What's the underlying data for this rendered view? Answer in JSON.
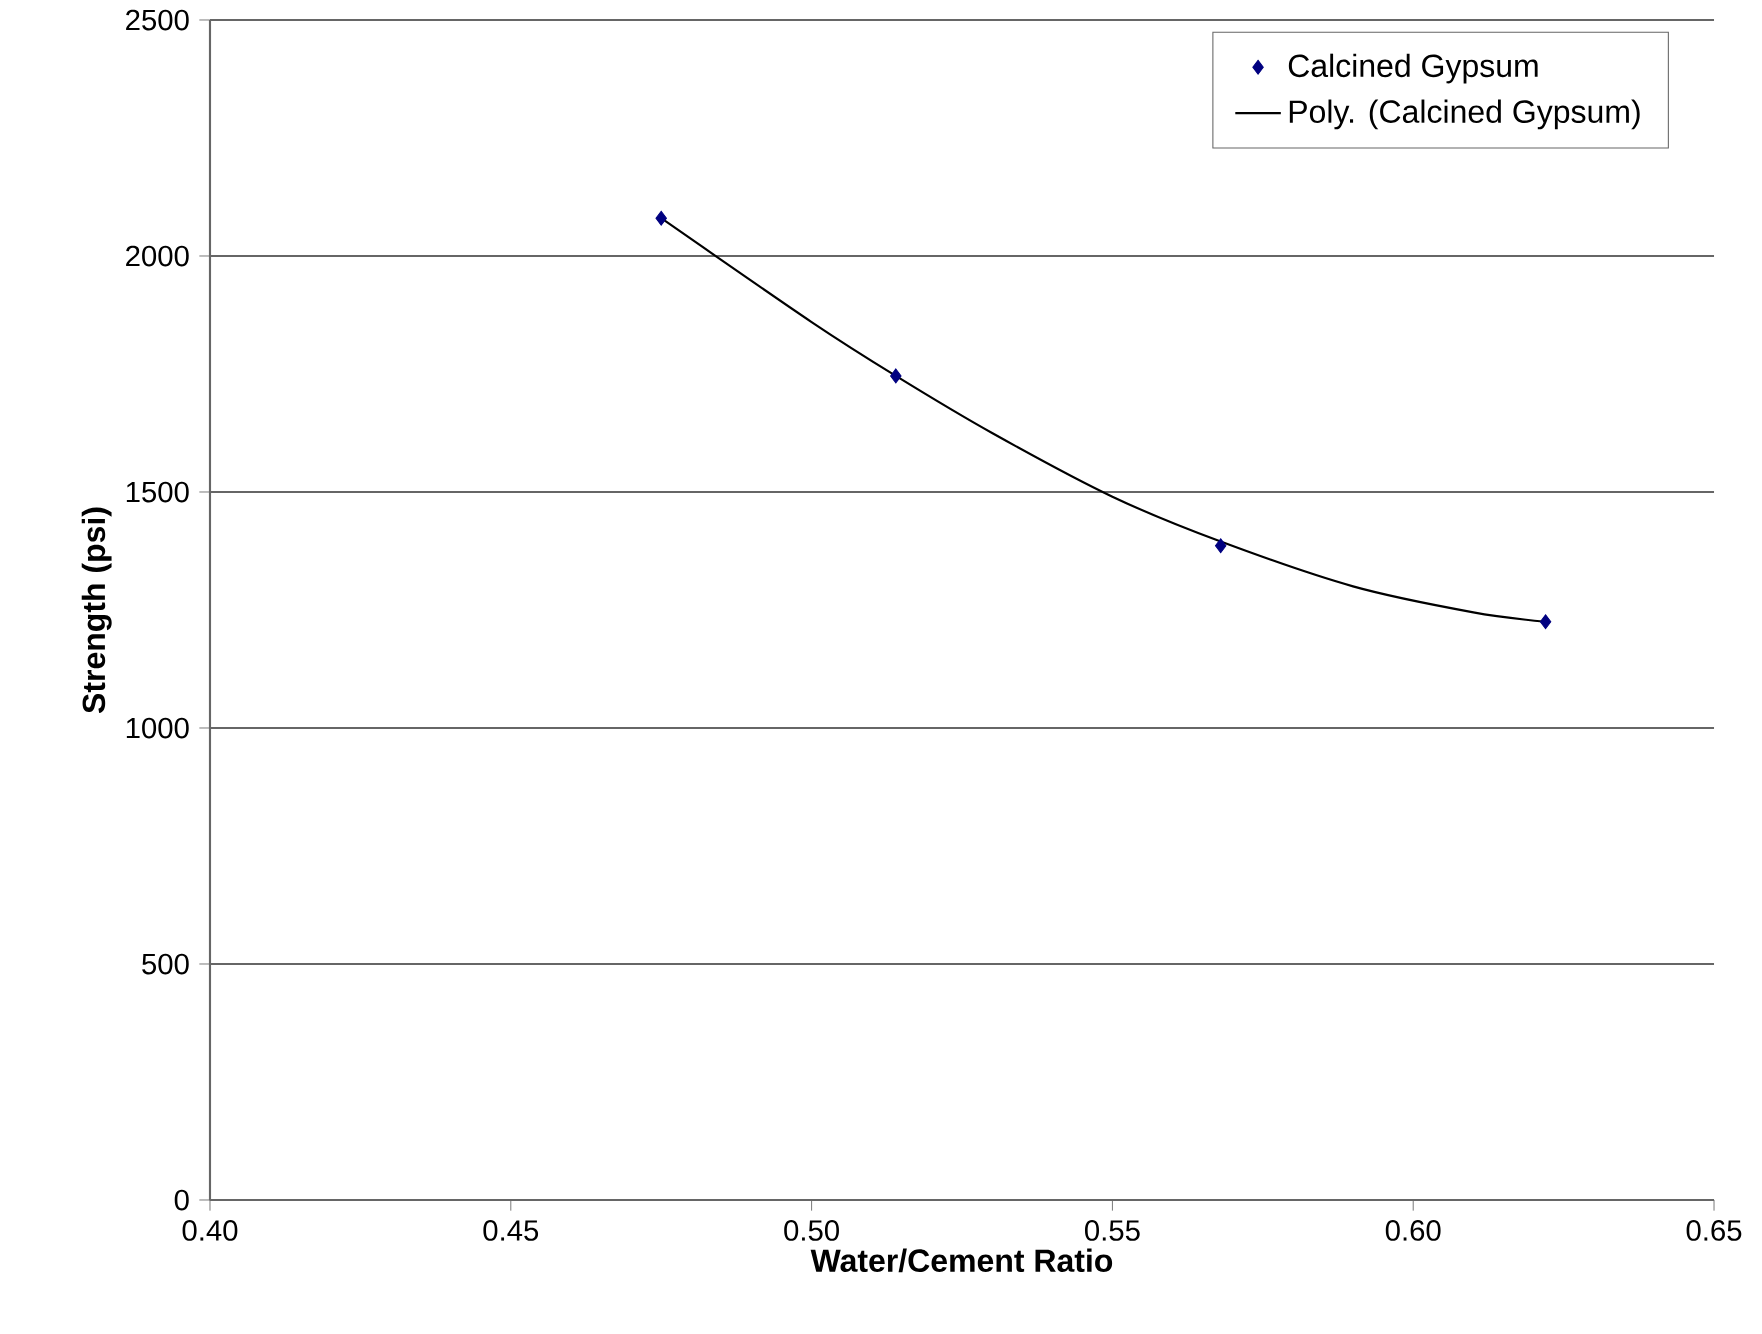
{
  "chart_data": {
    "type": "scatter",
    "xlabel": "Water/Cement Ratio",
    "ylabel": "Strength (psi)",
    "xlim": [
      0.4,
      0.65
    ],
    "xticks": [
      {
        "value": 0.4,
        "label": "0.40"
      },
      {
        "value": 0.45,
        "label": "0.45"
      },
      {
        "value": 0.5,
        "label": "0.50"
      },
      {
        "value": 0.55,
        "label": "0.55"
      },
      {
        "value": 0.6,
        "label": "0.60"
      },
      {
        "value": 0.65,
        "label": "0.65"
      }
    ],
    "ylim": [
      0,
      2500
    ],
    "yticks": [
      0,
      500,
      1000,
      1500,
      2000,
      2500
    ],
    "grid": "y",
    "legend": "top right",
    "series": [
      {
        "name": "Calcined Gypsum",
        "marker": "diamond",
        "color": "#000080",
        "x": [
          0.475,
          0.514,
          0.568,
          0.622
        ],
        "values": [
          2080,
          1746,
          1386,
          1225
        ]
      },
      {
        "name": "Poly. (Calcined Gypsum)",
        "type": "line",
        "marker": "none",
        "color": "#000000",
        "x": [
          0.475,
          0.5,
          0.514,
          0.53,
          0.55,
          0.568,
          0.59,
          0.61,
          0.622
        ],
        "values": [
          2080,
          1860,
          1746,
          1625,
          1490,
          1395,
          1300,
          1245,
          1225
        ]
      }
    ]
  }
}
